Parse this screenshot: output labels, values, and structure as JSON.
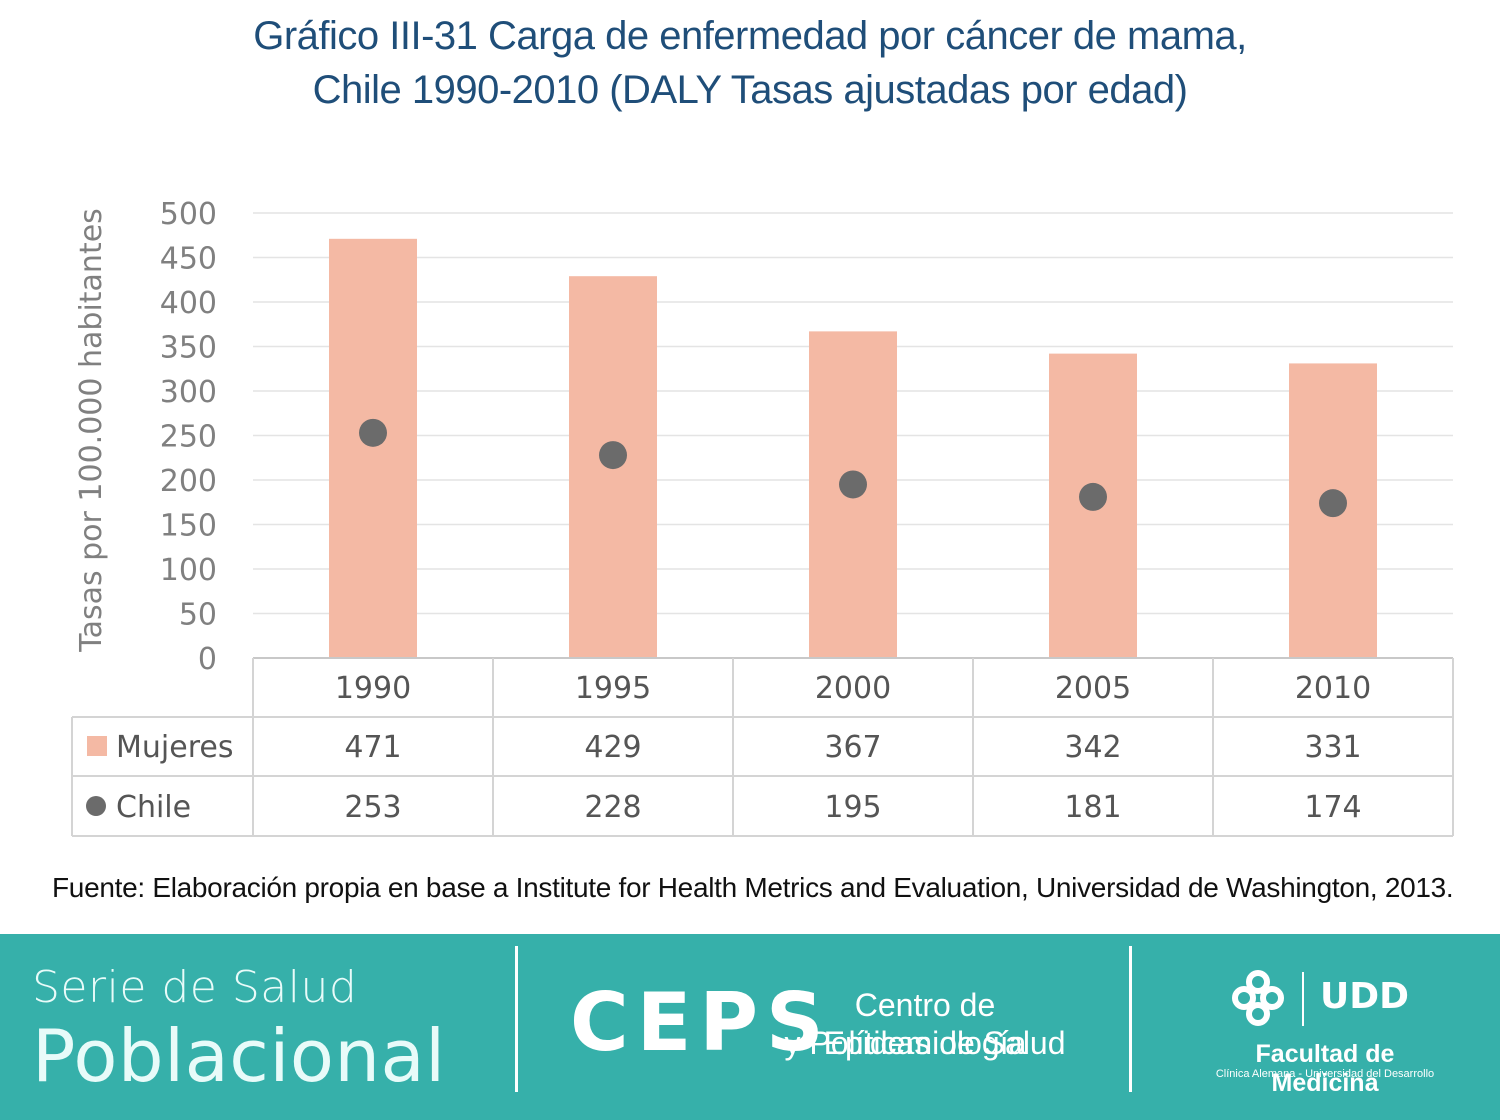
{
  "title_line1": "Gráfico III-31 Carga de enfermedad por cáncer de mama,",
  "title_line2": "Chile 1990-2010 (DALY Tasas ajustadas por edad)",
  "source": "Fuente: Elaboración propia en base a Institute for Health Metrics and Evaluation, Universidad de Washington, 2013.",
  "colors": {
    "bar": "#f4b9a4",
    "dot": "#6b6b6b",
    "title": "#1f4e79",
    "footer": "#36b0aa"
  },
  "chart_data": {
    "type": "bar",
    "ylabel": "Tasas por 100.000 habitantes",
    "ylim": [
      0,
      500
    ],
    "yticks": [
      "0",
      "50",
      "100",
      "150",
      "200",
      "250",
      "300",
      "350",
      "400",
      "450",
      "500"
    ],
    "grid": true,
    "categories": [
      "1990",
      "1995",
      "2000",
      "2005",
      "2010"
    ],
    "series": [
      {
        "name": "Mujeres",
        "kind": "bar",
        "values": [
          471,
          429,
          367,
          342,
          331
        ]
      },
      {
        "name": "Chile",
        "kind": "dot",
        "values": [
          253,
          228,
          195,
          181,
          174
        ]
      }
    ],
    "legend_placement": "data-table"
  },
  "footer": {
    "serie_line1": "Serie de Salud",
    "serie_line2": "Poblacional",
    "ceps": "CEPS",
    "ceps_line1": "Centro de Epidemiología",
    "ceps_line2": "y Políticas de Salud",
    "udd": "UDD",
    "faculty": "Facultad de Medicina",
    "faculty_sub": "Clínica Alemana - Universidad del Desarrollo"
  }
}
